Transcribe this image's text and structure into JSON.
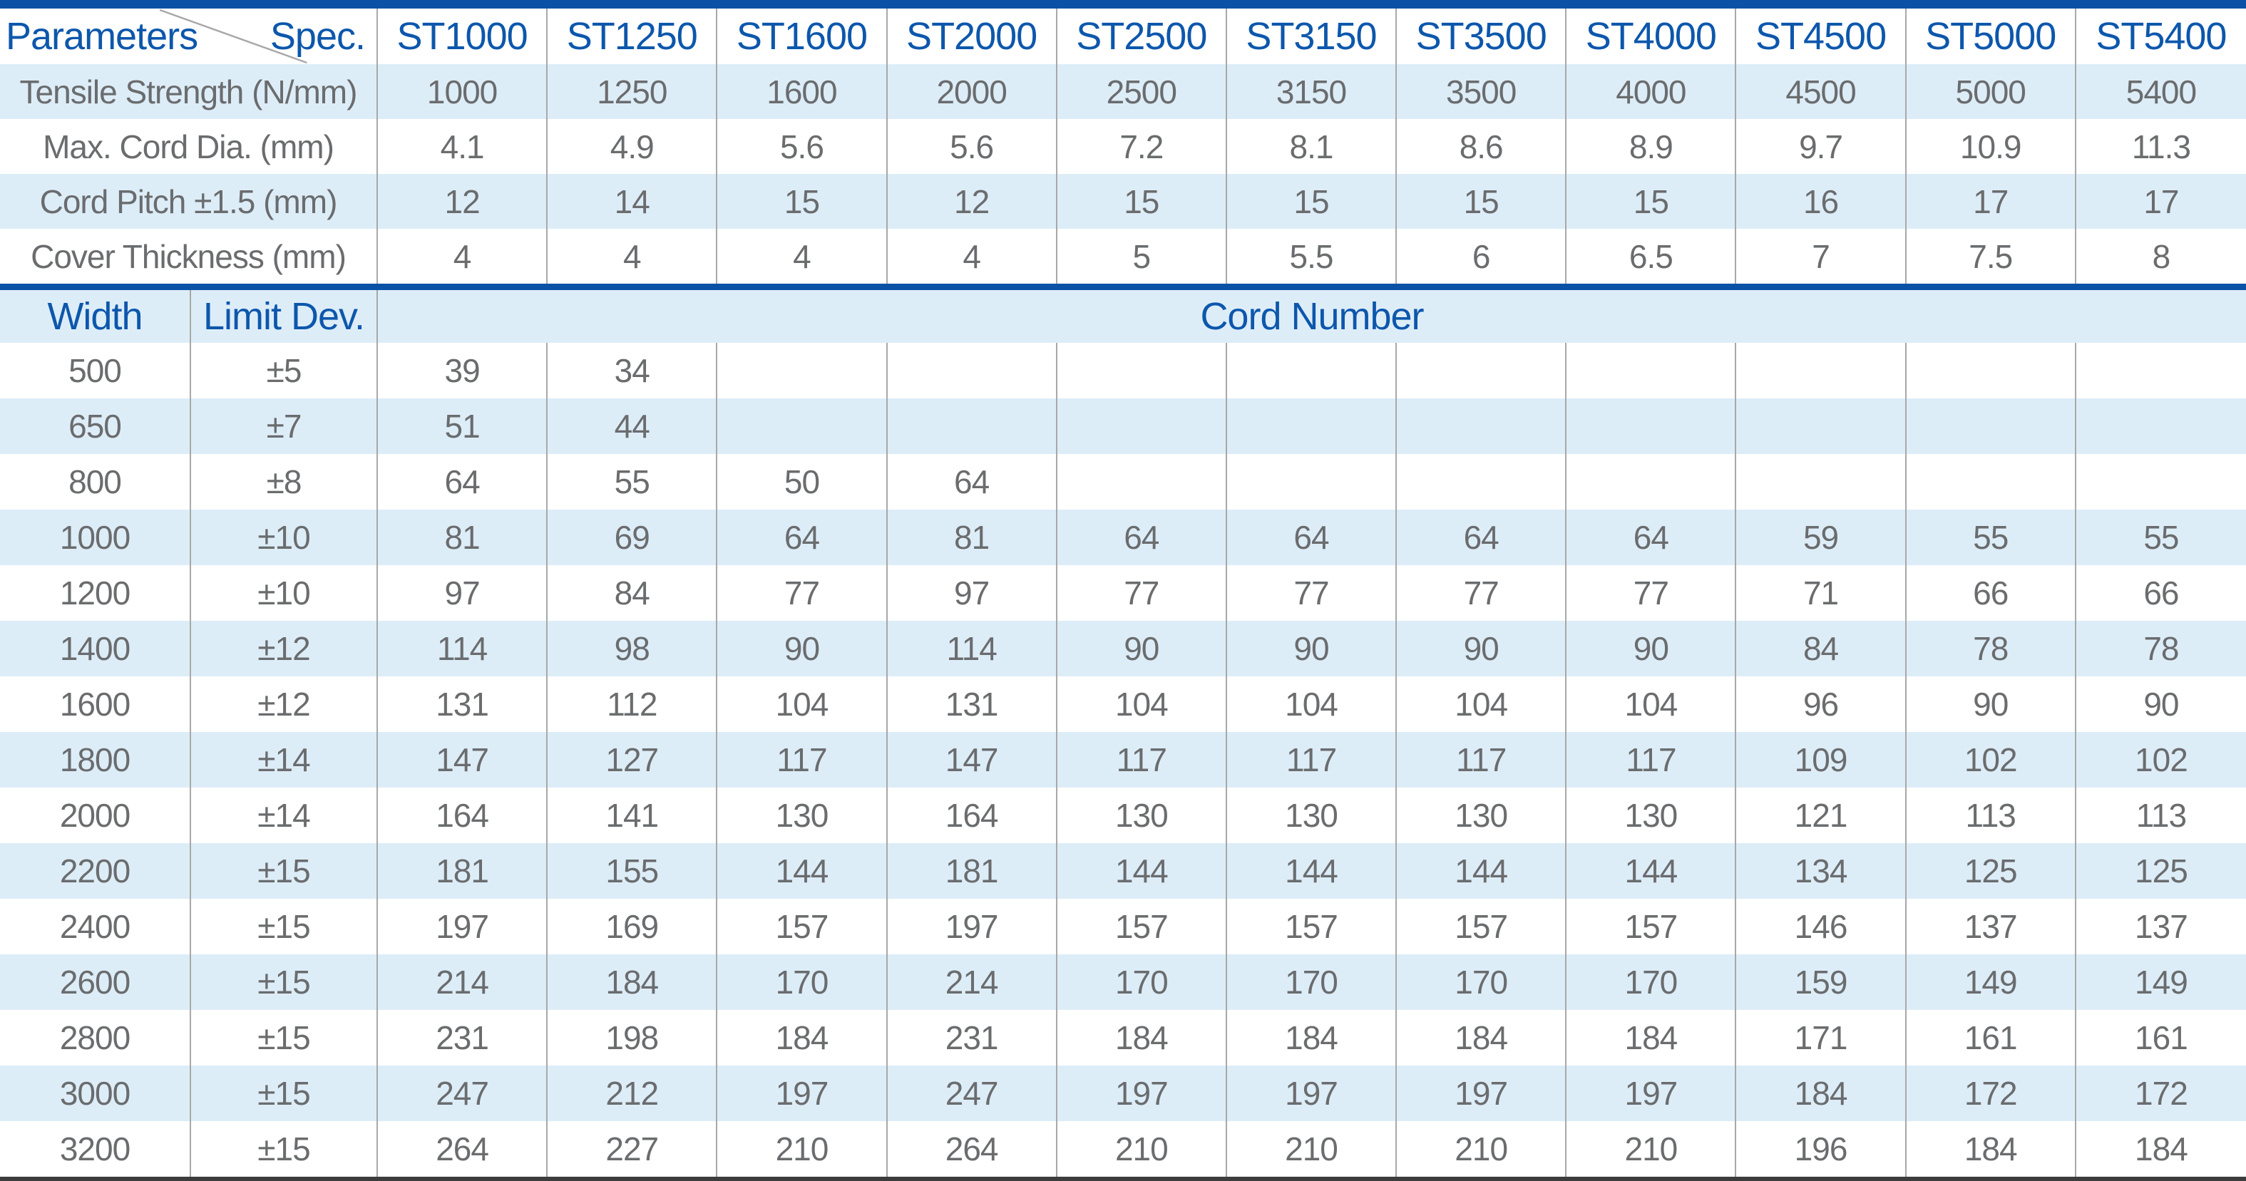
{
  "colors": {
    "rule_blue": "#0b51a5",
    "header_text_blue": "#0d57ac",
    "band_blue": "#ddedf8",
    "value_grey": "#6a6c6e",
    "divider_grey": "#a8a8a8",
    "bottom_rule_dark": "#3c3c3c"
  },
  "top_table": {
    "corner": {
      "left_label": "Parameters",
      "right_label": "Spec."
    },
    "spec_columns": [
      "ST1000",
      "ST1250",
      "ST1600",
      "ST2000",
      "ST2500",
      "ST3150",
      "ST3500",
      "ST4000",
      "ST4500",
      "ST5000",
      "ST5400"
    ],
    "rows": [
      {
        "label": "Tensile Strength (N/mm)",
        "values": [
          "1000",
          "1250",
          "1600",
          "2000",
          "2500",
          "3150",
          "3500",
          "4000",
          "4500",
          "5000",
          "5400"
        ]
      },
      {
        "label": "Max. Cord Dia. (mm)",
        "values": [
          "4.1",
          "4.9",
          "5.6",
          "5.6",
          "7.2",
          "8.1",
          "8.6",
          "8.9",
          "9.7",
          "10.9",
          "11.3"
        ]
      },
      {
        "label": "Cord Pitch ±1.5 (mm)",
        "values": [
          "12",
          "14",
          "15",
          "12",
          "15",
          "15",
          "15",
          "15",
          "16",
          "17",
          "17"
        ]
      },
      {
        "label": "Cover Thickness (mm)",
        "values": [
          "4",
          "4",
          "4",
          "4",
          "5",
          "5.5",
          "6",
          "6.5",
          "7",
          "7.5",
          "8"
        ]
      }
    ]
  },
  "bottom_table": {
    "headers": {
      "width": "Width",
      "limit_dev": "Limit Dev.",
      "cord_number": "Cord Number"
    },
    "rows": [
      {
        "width": "500",
        "limit_dev": "±5",
        "values": [
          "39",
          "34",
          "",
          "",
          "",
          "",
          "",
          "",
          "",
          "",
          ""
        ]
      },
      {
        "width": "650",
        "limit_dev": "±7",
        "values": [
          "51",
          "44",
          "",
          "",
          "",
          "",
          "",
          "",
          "",
          "",
          ""
        ]
      },
      {
        "width": "800",
        "limit_dev": "±8",
        "values": [
          "64",
          "55",
          "50",
          "64",
          "",
          "",
          "",
          "",
          "",
          "",
          ""
        ]
      },
      {
        "width": "1000",
        "limit_dev": "±10",
        "values": [
          "81",
          "69",
          "64",
          "81",
          "64",
          "64",
          "64",
          "64",
          "59",
          "55",
          "55"
        ]
      },
      {
        "width": "1200",
        "limit_dev": "±10",
        "values": [
          "97",
          "84",
          "77",
          "97",
          "77",
          "77",
          "77",
          "77",
          "71",
          "66",
          "66"
        ]
      },
      {
        "width": "1400",
        "limit_dev": "±12",
        "values": [
          "114",
          "98",
          "90",
          "114",
          "90",
          "90",
          "90",
          "90",
          "84",
          "78",
          "78"
        ]
      },
      {
        "width": "1600",
        "limit_dev": "±12",
        "values": [
          "131",
          "112",
          "104",
          "131",
          "104",
          "104",
          "104",
          "104",
          "96",
          "90",
          "90"
        ]
      },
      {
        "width": "1800",
        "limit_dev": "±14",
        "values": [
          "147",
          "127",
          "117",
          "147",
          "117",
          "117",
          "117",
          "117",
          "109",
          "102",
          "102"
        ]
      },
      {
        "width": "2000",
        "limit_dev": "±14",
        "values": [
          "164",
          "141",
          "130",
          "164",
          "130",
          "130",
          "130",
          "130",
          "121",
          "113",
          "113"
        ]
      },
      {
        "width": "2200",
        "limit_dev": "±15",
        "values": [
          "181",
          "155",
          "144",
          "181",
          "144",
          "144",
          "144",
          "144",
          "134",
          "125",
          "125"
        ]
      },
      {
        "width": "2400",
        "limit_dev": "±15",
        "values": [
          "197",
          "169",
          "157",
          "197",
          "157",
          "157",
          "157",
          "157",
          "146",
          "137",
          "137"
        ]
      },
      {
        "width": "2600",
        "limit_dev": "±15",
        "values": [
          "214",
          "184",
          "170",
          "214",
          "170",
          "170",
          "170",
          "170",
          "159",
          "149",
          "149"
        ]
      },
      {
        "width": "2800",
        "limit_dev": "±15",
        "values": [
          "231",
          "198",
          "184",
          "231",
          "184",
          "184",
          "184",
          "184",
          "171",
          "161",
          "161"
        ]
      },
      {
        "width": "3000",
        "limit_dev": "±15",
        "values": [
          "247",
          "212",
          "197",
          "247",
          "197",
          "197",
          "197",
          "197",
          "184",
          "172",
          "172"
        ]
      },
      {
        "width": "3200",
        "limit_dev": "±15",
        "values": [
          "264",
          "227",
          "210",
          "264",
          "210",
          "210",
          "210",
          "210",
          "196",
          "184",
          "184"
        ]
      }
    ]
  }
}
